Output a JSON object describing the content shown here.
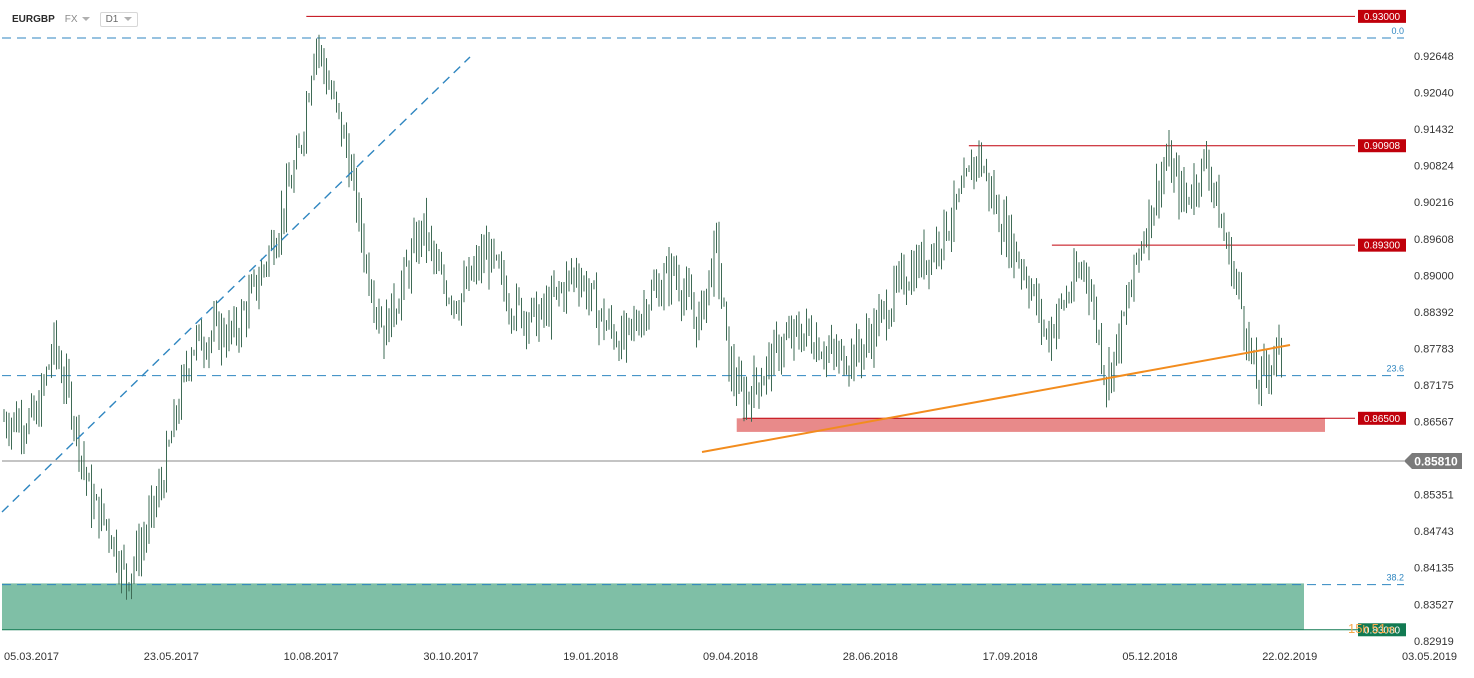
{
  "toolbar": {
    "symbol": "EURGBP",
    "market": "FX",
    "timeframe": "D1"
  },
  "chart_data": {
    "type": "line",
    "instrument": "EURGBP",
    "timeframe": "D1",
    "x_tick_labels": [
      "05.03.2017",
      "23.05.2017",
      "10.08.2017",
      "30.10.2017",
      "19.01.2018",
      "09.04.2018",
      "28.06.2018",
      "17.09.2018",
      "05.12.2018",
      "22.02.2019",
      "03.05.2019"
    ],
    "y_tick_labels": [
      "0.92648",
      "0.92040",
      "0.91432",
      "0.90824",
      "0.90216",
      "0.89608",
      "0.89000",
      "0.88392",
      "0.87783",
      "0.87175",
      "0.86567",
      "0.85959",
      "0.85351",
      "0.84743",
      "0.84135",
      "0.83527",
      "0.82919"
    ],
    "ylim": [
      0.8285,
      0.932
    ],
    "current_price": {
      "label": "0.85810",
      "value": 0.8581
    },
    "horizontal_levels": [
      {
        "label": "0.93000",
        "value": 0.93,
        "color": "#c0000b"
      },
      {
        "label": "0.90908",
        "value": 0.90908,
        "color": "#c0000b"
      },
      {
        "label": "0.89300",
        "value": 0.893,
        "color": "#c0000b"
      },
      {
        "label": "0.86500",
        "value": 0.865,
        "color": "#c0000b"
      },
      {
        "label": "0.83080",
        "value": 0.8308,
        "color": "#127a52"
      }
    ],
    "fibonacci_levels": [
      {
        "label": "0.0",
        "value": 0.9265
      },
      {
        "label": "23.6",
        "value": 0.8719
      },
      {
        "label": "38.2",
        "value": 0.8381
      }
    ],
    "countdown": {
      "hours": "15",
      "h": "h",
      "minutes": "51",
      "m": "m"
    },
    "colors": {
      "candles": "#3e6b55",
      "resistance": "#c0000b",
      "support_zone": "#7fbfa6",
      "resistance_zone": "#e88a8a",
      "trendline": "#f28c1e",
      "fib_lines": "#2f86c0",
      "price_line": "#888888",
      "price_badge": "#7a7a7a"
    },
    "zones": [
      {
        "name": "support-zone",
        "from": 0.8308,
        "to": 0.8383,
        "color": "#7fbfa6"
      },
      {
        "name": "resistance-zone",
        "from": 0.8628,
        "to": 0.865,
        "color": "#e88a8a"
      }
    ],
    "series": [
      {
        "values": [
          [
            "05.03.2017",
            0.8648
          ],
          [
            "15.03.2017",
            0.877
          ],
          [
            "25.03.2017",
            0.8672
          ],
          [
            "05.04.2017",
            0.8516
          ],
          [
            "15.04.2017",
            0.8475
          ],
          [
            "25.04.2017",
            0.839
          ],
          [
            "05.05.2017",
            0.8455
          ],
          [
            "15.05.2017",
            0.8542
          ],
          [
            "23.05.2017",
            0.865
          ],
          [
            "01.06.2017",
            0.8768
          ],
          [
            "15.06.2017",
            0.879
          ],
          [
            "25.06.2017",
            0.8785
          ],
          [
            "10.07.2017",
            0.888
          ],
          [
            "20.07.2017",
            0.896
          ],
          [
            "01.08.2017",
            0.9078
          ],
          [
            "07.08.2017",
            0.92
          ],
          [
            "10.08.2017",
            0.9268
          ],
          [
            "18.08.2017",
            0.9185
          ],
          [
            "28.08.2017",
            0.9085
          ],
          [
            "08.09.2017",
            0.89
          ],
          [
            "18.09.2017",
            0.879
          ],
          [
            "30.09.2017",
            0.888
          ],
          [
            "10.10.2017",
            0.896
          ],
          [
            "20.10.2017",
            0.887
          ],
          [
            "30.10.2017",
            0.884
          ],
          [
            "15.11.2017",
            0.892
          ],
          [
            "30.11.2017",
            0.883
          ],
          [
            "15.12.2017",
            0.881
          ],
          [
            "05.01.2018",
            0.889
          ],
          [
            "19.01.2018",
            0.881
          ],
          [
            "01.02.2018",
            0.877
          ],
          [
            "15.02.2018",
            0.8845
          ],
          [
            "01.03.2018",
            0.889
          ],
          [
            "15.03.2018",
            0.88
          ],
          [
            "25.03.2018",
            0.893
          ],
          [
            "01.04.2018",
            0.874
          ],
          [
            "09.04.2018",
            0.868
          ],
          [
            "20.04.2018",
            0.872
          ],
          [
            "01.05.2018",
            0.877
          ],
          [
            "15.05.2018",
            0.879
          ],
          [
            "01.06.2018",
            0.8745
          ],
          [
            "15.06.2018",
            0.876
          ],
          [
            "28.06.2018",
            0.882
          ],
          [
            "10.07.2018",
            0.888
          ],
          [
            "25.07.2018",
            0.892
          ],
          [
            "10.08.2018",
            0.9
          ],
          [
            "20.08.2018",
            0.908
          ],
          [
            "01.09.2018",
            0.8975
          ],
          [
            "17.09.2018",
            0.888
          ],
          [
            "28.09.2018",
            0.878
          ],
          [
            "10.10.2018",
            0.885
          ],
          [
            "20.10.2018",
            0.89
          ],
          [
            "01.11.2018",
            0.871
          ],
          [
            "10.11.2018",
            0.88
          ],
          [
            "20.11.2018",
            0.893
          ],
          [
            "05.12.2018",
            0.907
          ],
          [
            "15.12.2018",
            0.9
          ],
          [
            "28.12.2018",
            0.907
          ],
          [
            "05.01.2019",
            0.896
          ],
          [
            "15.01.2019",
            0.885
          ],
          [
            "25.01.2019",
            0.87
          ],
          [
            "05.02.2019",
            0.876
          ],
          [
            "15.02.2019",
            0.87
          ],
          [
            "22.02.2019",
            0.859
          ],
          [
            "01.03.2019",
            0.8581
          ]
        ]
      }
    ]
  }
}
